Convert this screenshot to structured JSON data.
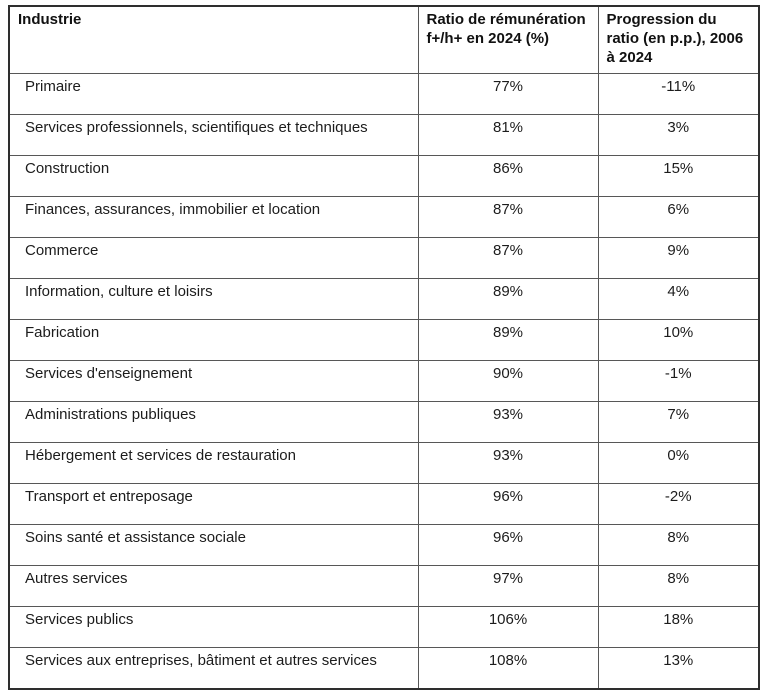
{
  "chart_data": {
    "type": "table",
    "title": "",
    "columns": [
      "Industrie",
      "Ratio de rémunération f+/h+ en 2024 (%)",
      "Progression du ratio (en p.p.), 2006 à 2024"
    ],
    "rows": [
      {
        "industry": "Primaire",
        "ratio": "77%",
        "progression": "-11%"
      },
      {
        "industry": "Services professionnels, scientifiques et techniques",
        "ratio": "81%",
        "progression": "3%"
      },
      {
        "industry": "Construction",
        "ratio": "86%",
        "progression": "15%"
      },
      {
        "industry": "Finances, assurances, immobilier et location",
        "ratio": "87%",
        "progression": "6%"
      },
      {
        "industry": "Commerce",
        "ratio": "87%",
        "progression": "9%"
      },
      {
        "industry": "Information, culture et loisirs",
        "ratio": "89%",
        "progression": "4%"
      },
      {
        "industry": "Fabrication",
        "ratio": "89%",
        "progression": "10%"
      },
      {
        "industry": "Services d'enseignement",
        "ratio": "90%",
        "progression": "-1%"
      },
      {
        "industry": "Administrations publiques",
        "ratio": "93%",
        "progression": "7%"
      },
      {
        "industry": "Hébergement et services de restauration",
        "ratio": "93%",
        "progression": "0%"
      },
      {
        "industry": "Transport et entreposage",
        "ratio": "96%",
        "progression": "-2%"
      },
      {
        "industry": "Soins santé et assistance sociale",
        "ratio": "96%",
        "progression": "8%"
      },
      {
        "industry": "Autres services",
        "ratio": "97%",
        "progression": "8%"
      },
      {
        "industry": "Services publics",
        "ratio": "106%",
        "progression": "18%"
      },
      {
        "industry": "Services aux entreprises, bâtiment et autres services",
        "ratio": "108%",
        "progression": "13%"
      }
    ],
    "layout": {
      "grid": true,
      "text_color": "#1c1c1c",
      "border_color_outer": "#2e2e2e",
      "border_color_inner": "#575757",
      "background": "#ffffff"
    }
  }
}
